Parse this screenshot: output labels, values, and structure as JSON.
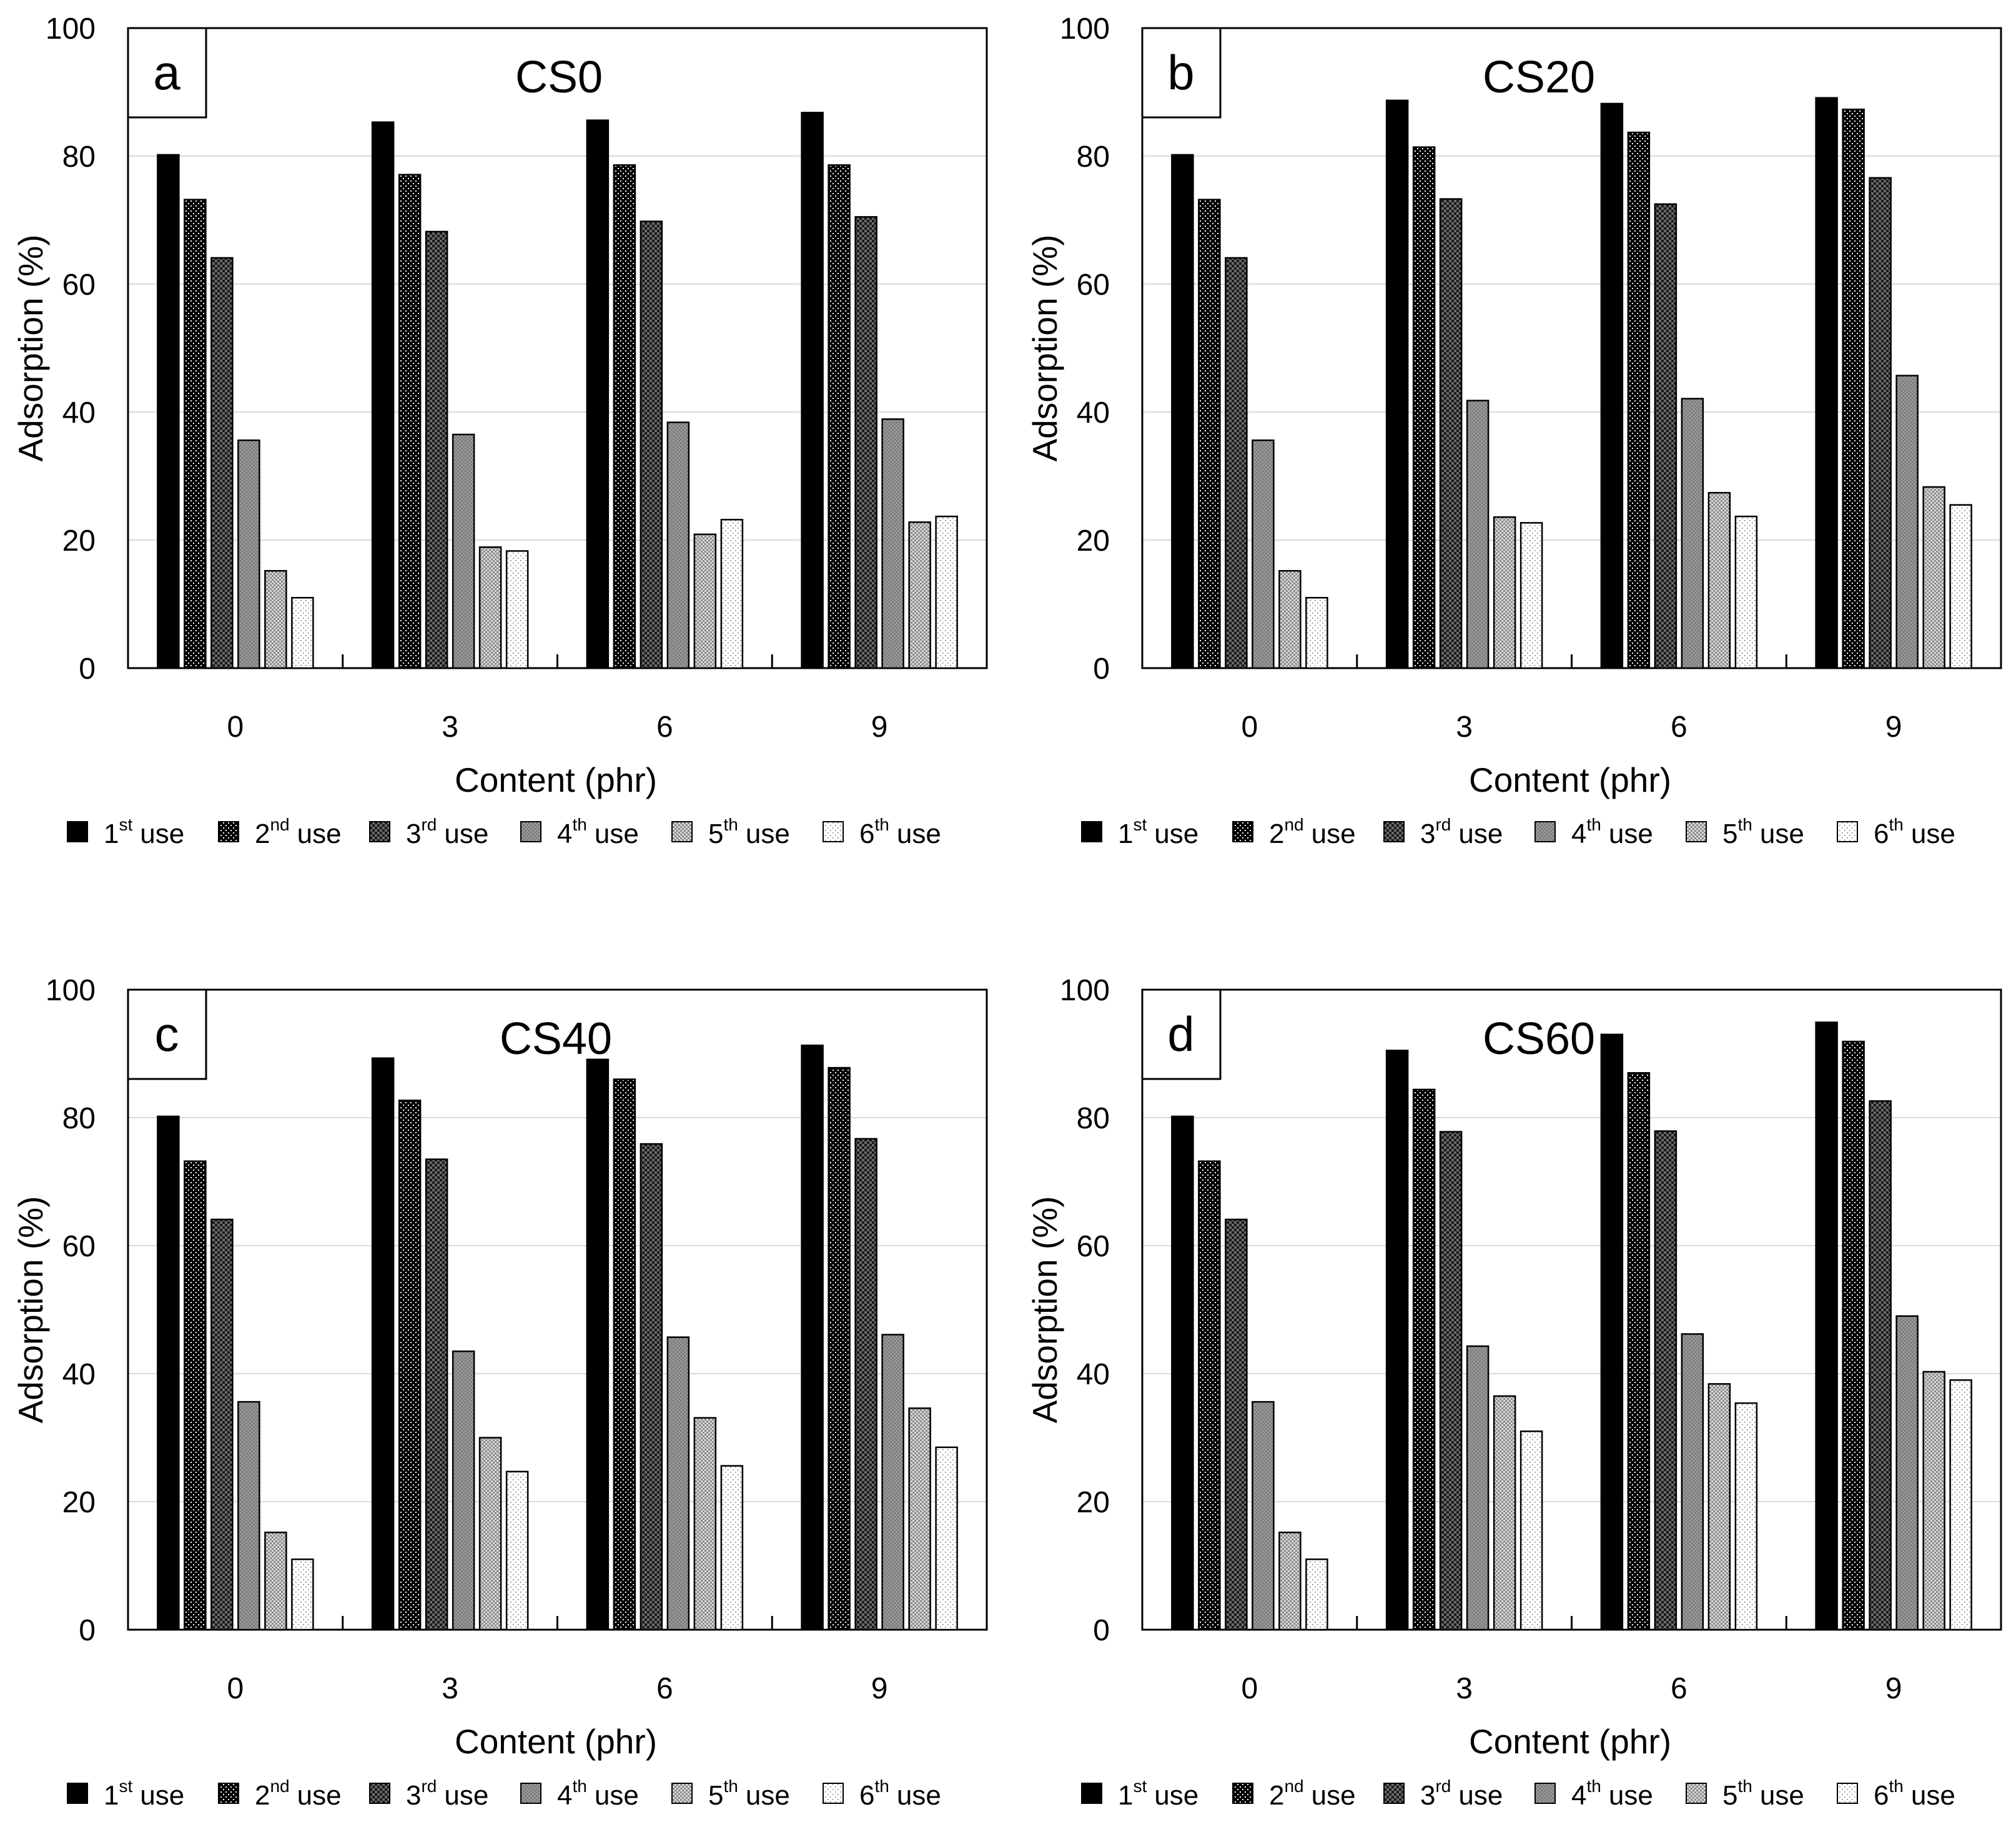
{
  "legend": {
    "ordinal_numbers": [
      "1",
      "2",
      "3",
      "4",
      "5",
      "6"
    ],
    "ordinal_suffixes": [
      "st",
      "nd",
      "rd",
      "th",
      "th",
      "th"
    ],
    "word": "use"
  },
  "chart_data": [
    {
      "type": "bar",
      "panel_label": "a",
      "title": "CS0",
      "xlabel": "Content (phr)",
      "ylabel": "Adsorption (%)",
      "ylim": [
        0,
        100
      ],
      "yticks": [
        "0",
        "20",
        "40",
        "60",
        "80",
        "100"
      ],
      "grid": true,
      "legend_position": "bottom",
      "categories": [
        "0",
        "3",
        "6",
        "9"
      ],
      "series": [
        {
          "name": "1st use",
          "values": [
            80.2,
            85.3,
            85.6,
            86.8
          ]
        },
        {
          "name": "2nd use",
          "values": [
            73.2,
            77.1,
            78.6,
            78.6
          ]
        },
        {
          "name": "3rd use",
          "values": [
            64.1,
            68.2,
            69.8,
            70.5
          ]
        },
        {
          "name": "4th use",
          "values": [
            35.6,
            36.5,
            38.4,
            38.9
          ]
        },
        {
          "name": "5th use",
          "values": [
            15.2,
            18.9,
            20.9,
            22.8
          ]
        },
        {
          "name": "6th use",
          "values": [
            11.0,
            18.3,
            23.2,
            23.7
          ]
        }
      ]
    },
    {
      "type": "bar",
      "panel_label": "b",
      "title": "CS20",
      "xlabel": "Content (phr)",
      "ylabel": "Adsorption (%)",
      "ylim": [
        0,
        100
      ],
      "yticks": [
        "0",
        "20",
        "40",
        "60",
        "80",
        "100"
      ],
      "grid": true,
      "legend_position": "bottom",
      "categories": [
        "0",
        "3",
        "6",
        "9"
      ],
      "series": [
        {
          "name": "1st use",
          "values": [
            80.2,
            88.7,
            88.2,
            89.1
          ]
        },
        {
          "name": "2nd use",
          "values": [
            73.2,
            81.4,
            83.7,
            87.3
          ]
        },
        {
          "name": "3rd use",
          "values": [
            64.1,
            73.3,
            72.5,
            76.6
          ]
        },
        {
          "name": "4th use",
          "values": [
            35.6,
            41.8,
            42.1,
            45.7
          ]
        },
        {
          "name": "5th use",
          "values": [
            15.2,
            23.6,
            27.4,
            28.3
          ]
        },
        {
          "name": "6th use",
          "values": [
            11.0,
            22.7,
            23.7,
            25.5
          ]
        }
      ]
    },
    {
      "type": "bar",
      "panel_label": "c",
      "title": "CS40",
      "xlabel": "Content (phr)",
      "ylabel": "Adsorption (%)",
      "ylim": [
        0,
        100
      ],
      "yticks": [
        "0",
        "20",
        "40",
        "60",
        "80",
        "100"
      ],
      "grid": true,
      "legend_position": "bottom",
      "categories": [
        "0",
        "3",
        "6",
        "9"
      ],
      "series": [
        {
          "name": "1st use",
          "values": [
            80.2,
            89.3,
            89.1,
            91.3
          ]
        },
        {
          "name": "2nd use",
          "values": [
            73.2,
            82.7,
            86.0,
            87.8
          ]
        },
        {
          "name": "3rd use",
          "values": [
            64.1,
            73.5,
            75.9,
            76.7
          ]
        },
        {
          "name": "4th use",
          "values": [
            35.6,
            43.5,
            45.7,
            46.1
          ]
        },
        {
          "name": "5th use",
          "values": [
            15.2,
            30.0,
            33.1,
            34.6
          ]
        },
        {
          "name": "6th use",
          "values": [
            11.0,
            24.7,
            25.6,
            28.5
          ]
        }
      ]
    },
    {
      "type": "bar",
      "panel_label": "d",
      "title": "CS60",
      "xlabel": "Content (phr)",
      "ylabel": "Adsorption (%)",
      "ylim": [
        0,
        100
      ],
      "yticks": [
        "0",
        "20",
        "40",
        "60",
        "80",
        "100"
      ],
      "grid": true,
      "legend_position": "bottom",
      "categories": [
        "0",
        "3",
        "6",
        "9"
      ],
      "series": [
        {
          "name": "1st use",
          "values": [
            80.2,
            90.5,
            93.0,
            94.9
          ]
        },
        {
          "name": "2nd use",
          "values": [
            73.2,
            84.4,
            87.0,
            91.9
          ]
        },
        {
          "name": "3rd use",
          "values": [
            64.1,
            77.8,
            77.9,
            82.6
          ]
        },
        {
          "name": "4th use",
          "values": [
            35.6,
            44.3,
            46.2,
            49.0
          ]
        },
        {
          "name": "5th use",
          "values": [
            15.2,
            36.5,
            38.4,
            40.3
          ]
        },
        {
          "name": "6th use",
          "values": [
            11.0,
            31.0,
            35.4,
            39.0
          ]
        }
      ]
    }
  ]
}
